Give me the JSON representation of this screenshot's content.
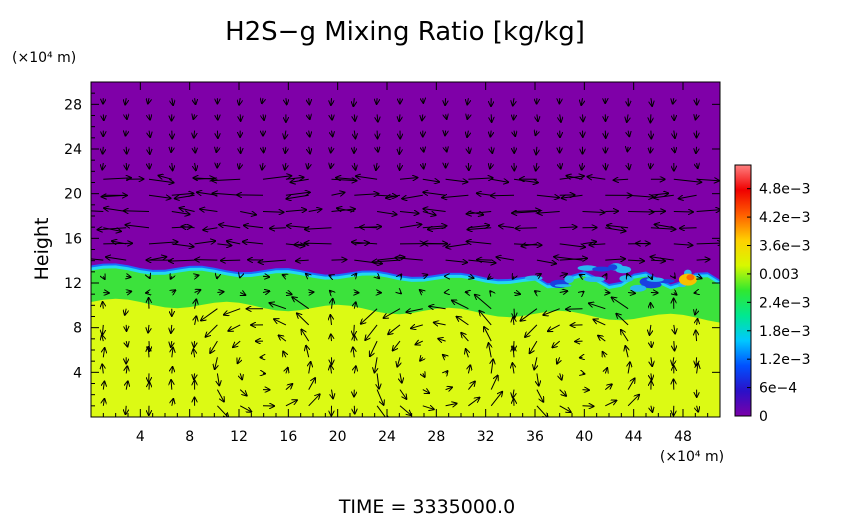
{
  "chart_data": {
    "type": "heatmap",
    "title": "H2S−g Mixing Ratio [kg/kg]",
    "ylabel": "Height",
    "y_unit_label": "(×10⁴ m)",
    "x_unit_label": "(×10⁴ m)",
    "xlim": [
      0,
      51
    ],
    "ylim": [
      0,
      30
    ],
    "x_ticks": [
      "4",
      "8",
      "12",
      "16",
      "20",
      "24",
      "28",
      "32",
      "36",
      "40",
      "44",
      "48"
    ],
    "y_ticks": [
      "4",
      "8",
      "12",
      "16",
      "20",
      "24",
      "28"
    ],
    "colorbar": {
      "range": [
        0,
        0.0053
      ],
      "ticks": [
        {
          "value": 0.0048,
          "label": "4.8e−3"
        },
        {
          "value": 0.0042,
          "label": "4.2e−3"
        },
        {
          "value": 0.0036,
          "label": "3.6e−3"
        },
        {
          "value": 0.003,
          "label": "0.003"
        },
        {
          "value": 0.0024,
          "label": "2.4e−3"
        },
        {
          "value": 0.0018,
          "label": "1.8e−3"
        },
        {
          "value": 0.0012,
          "label": "1.2e−3"
        },
        {
          "value": 0.0006,
          "label": "6e−4"
        },
        {
          "value": 0,
          "label": "0"
        }
      ],
      "colors": [
        "#7a00a8",
        "#2a10c8",
        "#0050ff",
        "#00c8ff",
        "#00e890",
        "#30e830",
        "#d8f800",
        "#ffd000",
        "#ff6000",
        "#f00000",
        "#ff8080"
      ]
    },
    "regions": [
      {
        "name": "lower layer",
        "y_range": [
          0,
          10
        ],
        "value": 0.0032,
        "color": "#dcfa14"
      },
      {
        "name": "middle layer",
        "y_range": [
          10,
          12
        ],
        "value": 0.0027,
        "color": "#3ce23c"
      },
      {
        "name": "upper layer",
        "y_range": [
          13,
          30
        ],
        "value": 0,
        "color": "#7f00a8"
      }
    ],
    "wind_vectors": "present"
  },
  "footer": {
    "time_label": "TIME = 3335000.0"
  }
}
